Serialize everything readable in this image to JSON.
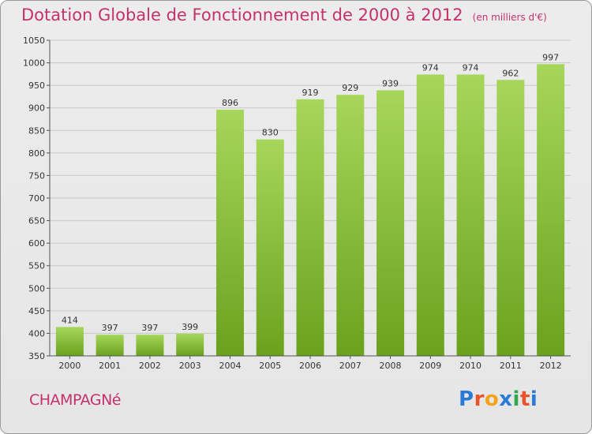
{
  "header": {
    "title": "Dotation Globale de Fonctionnement de 2000 à 2012",
    "subtitle": "(en milliers d'€)"
  },
  "footer": {
    "commune": "CHAMPAGNé",
    "logo_letters": [
      "P",
      "r",
      "o",
      "x",
      "i",
      "t",
      "i"
    ],
    "logo_colors": [
      "#2b7bd6",
      "#e8532b",
      "#f3a21b",
      "#2b7bd6",
      "#2fa84f",
      "#e8532b",
      "#2b7bd6"
    ]
  },
  "colors": {
    "title": "#c4326b",
    "bar_light": "#a6d65a",
    "bar_dark": "#6aa21d",
    "grid": "#c8c8c8",
    "axis": "#555555"
  },
  "chart_data": {
    "type": "bar",
    "categories": [
      "2000",
      "2001",
      "2002",
      "2003",
      "2004",
      "2005",
      "2006",
      "2007",
      "2008",
      "2009",
      "2010",
      "2011",
      "2012"
    ],
    "values": [
      414,
      397,
      397,
      399,
      896,
      830,
      919,
      929,
      939,
      974,
      974,
      962,
      997
    ],
    "ylim": [
      350,
      1050
    ],
    "yticks": [
      350,
      400,
      450,
      500,
      550,
      600,
      650,
      700,
      750,
      800,
      850,
      900,
      950,
      1000,
      1050
    ],
    "grid": true
  }
}
